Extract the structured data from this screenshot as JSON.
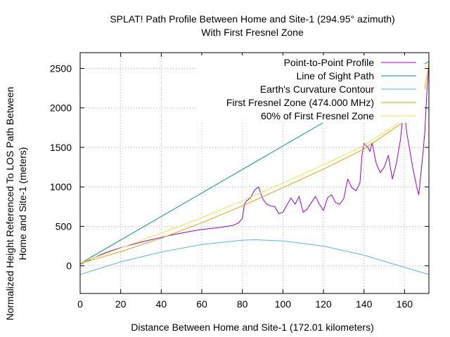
{
  "chart_data": {
    "type": "line",
    "title": "SPLAT! Path Profile Between Home and Site-1  (294.95° azimuth)",
    "subtitle": "With First Fresnel Zone",
    "xlabel": "Distance Between Home and Site-1  (172.01 kilometers)",
    "ylabel_line1": "Normalized Height Referenced To LOS Path Between",
    "ylabel_line2": "Home and Site-1  (meters)",
    "xlim": [
      0,
      172.01
    ],
    "ylim": [
      -350,
      2700
    ],
    "x_ticks": [
      0,
      20,
      40,
      60,
      80,
      100,
      120,
      140,
      160
    ],
    "y_ticks": [
      0,
      500,
      1000,
      1500,
      2000,
      2500
    ],
    "grid": true,
    "legend_position": "top-right",
    "series": [
      {
        "name": "Point-to-Point Profile",
        "color": "#9400d3",
        "x": [
          0,
          5,
          10,
          15,
          20,
          25,
          30,
          35,
          40,
          45,
          50,
          55,
          60,
          65,
          70,
          75,
          78,
          80,
          81,
          82,
          84,
          86,
          88,
          90,
          92,
          94,
          96,
          98,
          100,
          102,
          104,
          106,
          108,
          110,
          112,
          114,
          116,
          118,
          120,
          122,
          124,
          126,
          128,
          130,
          132,
          134,
          136,
          138,
          139,
          140,
          141,
          142,
          143,
          144,
          146,
          148,
          150,
          152,
          154,
          156,
          158,
          159,
          160,
          161,
          162,
          164,
          166,
          167,
          168,
          169,
          170,
          171,
          172.01
        ],
        "y": [
          20,
          80,
          140,
          190,
          230,
          265,
          300,
          330,
          360,
          390,
          415,
          440,
          460,
          475,
          490,
          510,
          540,
          600,
          780,
          820,
          860,
          960,
          1000,
          850,
          780,
          760,
          750,
          660,
          680,
          770,
          860,
          780,
          880,
          680,
          720,
          800,
          880,
          780,
          700,
          860,
          900,
          800,
          780,
          850,
          1100,
          990,
          950,
          1050,
          1400,
          1550,
          1520,
          1500,
          1450,
          1560,
          1300,
          1180,
          1250,
          1400,
          1100,
          1300,
          1600,
          1850,
          1980,
          1700,
          1550,
          1250,
          1000,
          900,
          1150,
          1400,
          1700,
          2200,
          2550
        ]
      },
      {
        "name": "Line of Sight Path",
        "color": "#009e73",
        "x": [
          0,
          172.01
        ],
        "y": [
          30,
          2590
        ]
      },
      {
        "name": "Earth's Curvature Contour",
        "color": "#56b4e9",
        "x": [
          0,
          20,
          40,
          60,
          80,
          86,
          100,
          120,
          140,
          160,
          172.01
        ],
        "y": [
          -110,
          50,
          175,
          270,
          325,
          330,
          315,
          250,
          135,
          -20,
          -110
        ]
      },
      {
        "name": "First Fresnel Zone (474.000 MHz)",
        "color": "#e69f00",
        "x": [
          0,
          2,
          5,
          10,
          20,
          40,
          60,
          80,
          100,
          120,
          140,
          160,
          167,
          170,
          172.01
        ],
        "y": [
          30,
          45,
          70,
          105,
          180,
          350,
          545,
          760,
          990,
          1225,
          1480,
          1830,
          2040,
          2240,
          2590
        ]
      },
      {
        "name": "60% of First Fresnel Zone",
        "color": "#f0e442",
        "x": [
          0,
          2,
          5,
          10,
          20,
          40,
          60,
          80,
          100,
          120,
          140,
          160,
          167,
          170,
          172.01
        ],
        "y": [
          30,
          55,
          85,
          130,
          225,
          415,
          610,
          825,
          1050,
          1280,
          1525,
          1860,
          2080,
          2280,
          2590
        ]
      }
    ]
  }
}
